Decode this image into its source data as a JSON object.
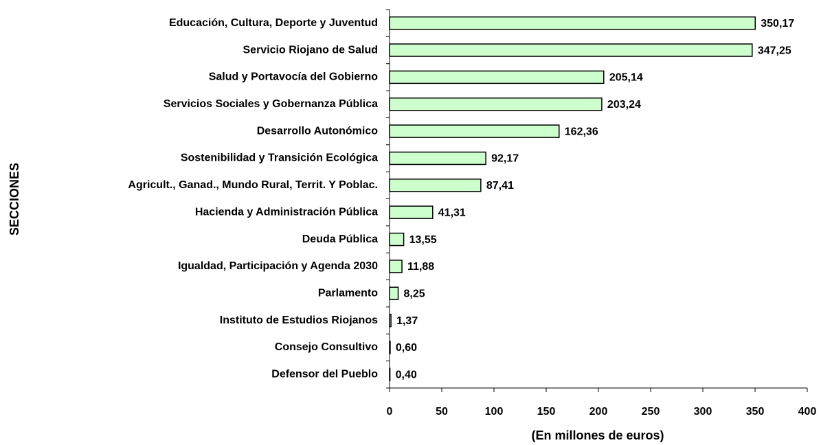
{
  "chart_data": {
    "type": "bar",
    "orientation": "horizontal",
    "xlabel": "(En millones de euros)",
    "ylabel": "SECCIONES",
    "categories": [
      "Educación, Cultura, Deporte y Juventud",
      "Servicio Riojano de Salud",
      "Salud y Portavocía del Gobierno",
      "Servicios Sociales y Gobernanza Pública",
      "Desarrollo Autonómico",
      "Sostenibilidad y Transición Ecológica",
      "Agricult., Ganad., Mundo Rural, Territ. Y Poblac.",
      "Hacienda y Administración Pública",
      "Deuda Pública",
      "Igualdad, Participación y Agenda 2030",
      "Parlamento",
      "Instituto de Estudios Riojanos",
      "Consejo Consultivo",
      "Defensor del Pueblo"
    ],
    "values": [
      350.17,
      347.25,
      205.14,
      203.24,
      162.36,
      92.17,
      87.41,
      41.31,
      13.55,
      11.88,
      8.25,
      1.37,
      0.6,
      0.4
    ],
    "value_labels": [
      "350,17",
      "347,25",
      "205,14",
      "203,24",
      "162,36",
      "92,17",
      "87,41",
      "41,31",
      "13,55",
      "11,88",
      "8,25",
      "1,37",
      "0,60",
      "0,40"
    ],
    "color": "#ccffcc",
    "xlim": [
      0,
      400
    ],
    "xticks": [
      0,
      50,
      100,
      150,
      200,
      250,
      300,
      350,
      400
    ]
  }
}
